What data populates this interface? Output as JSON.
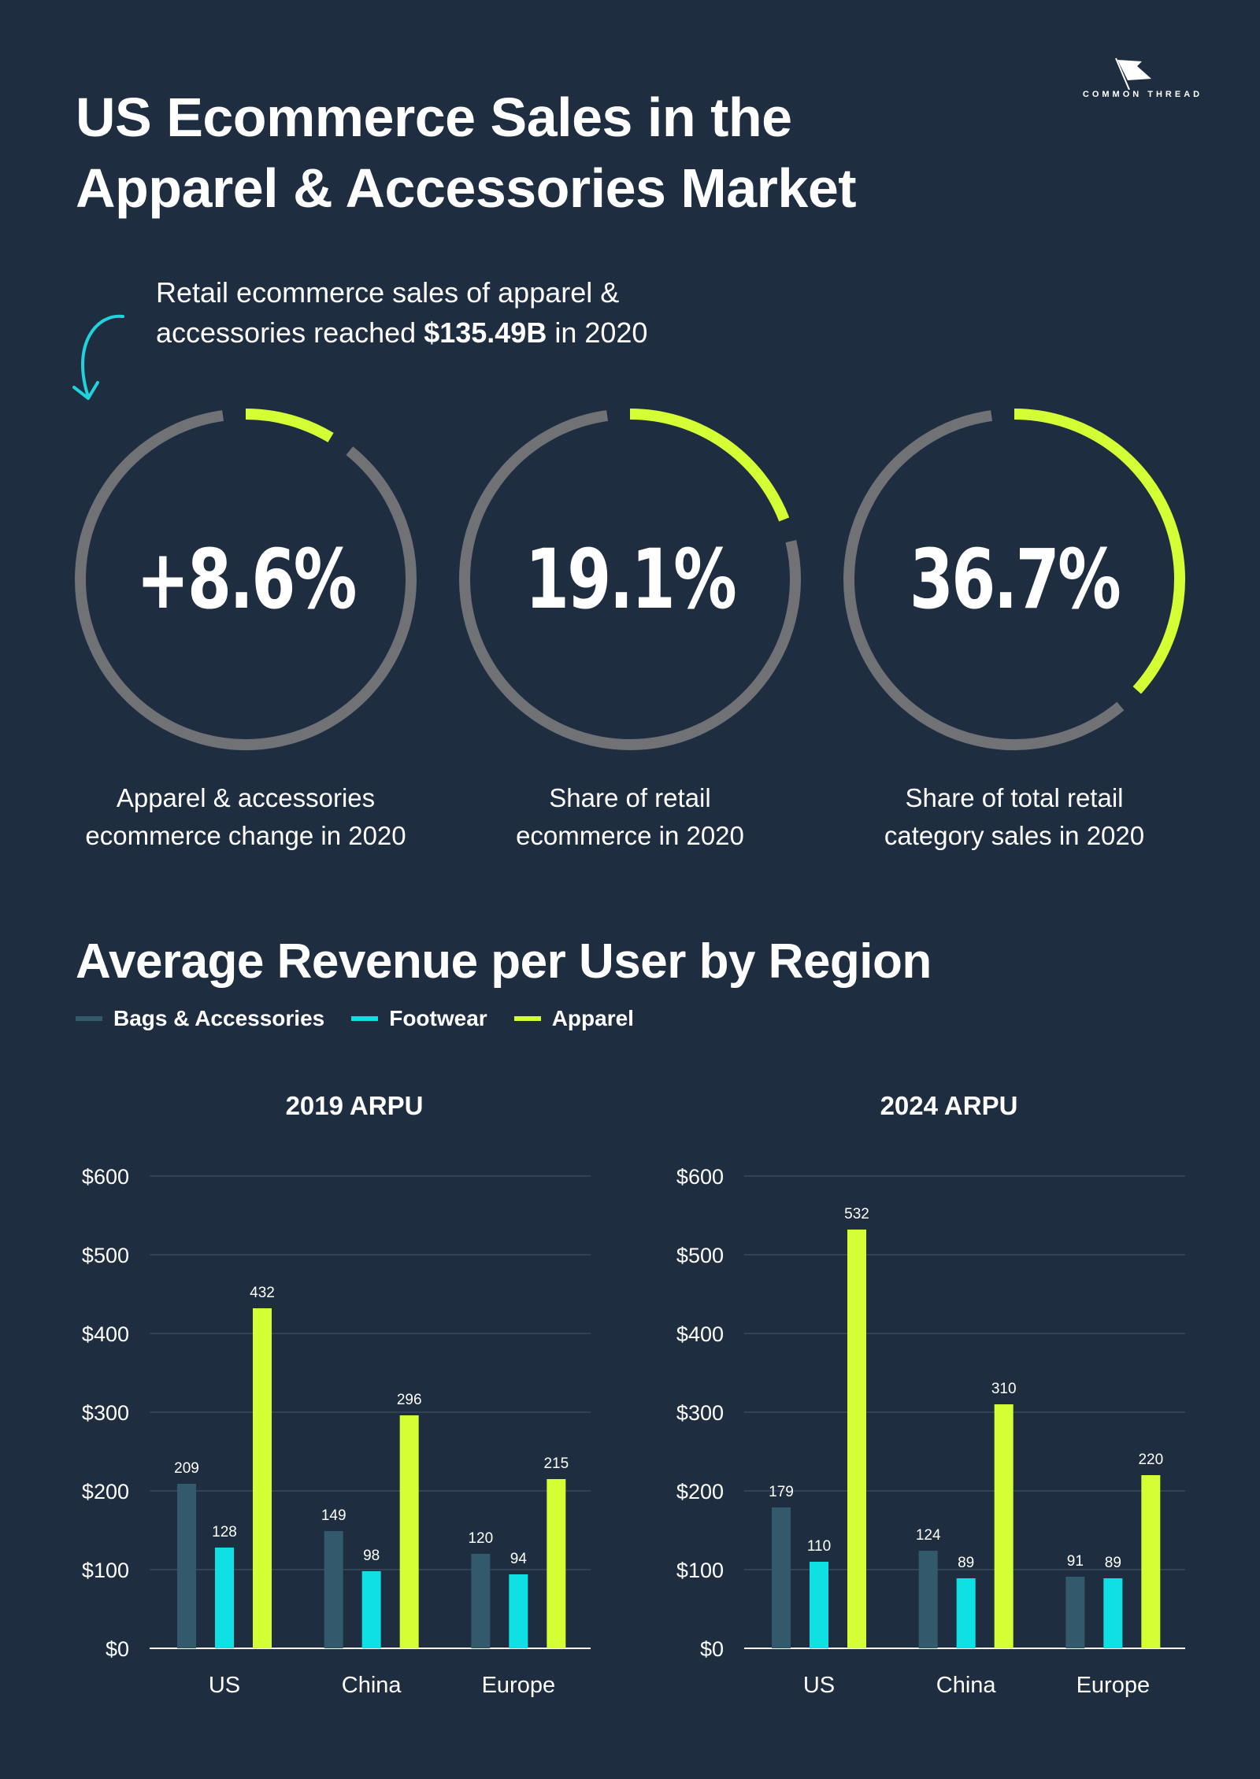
{
  "header": {
    "title_line1": "US Ecommerce Sales in the",
    "title_line2": "Apparel & Accessories Market",
    "logo_text": "COMMON THREAD"
  },
  "intro": {
    "line1": "Retail ecommerce sales of apparel &",
    "line2_prefix": "accessories reached",
    "line2_value": "$135.49B",
    "line2_suffix": "in 2020"
  },
  "stats": [
    {
      "value": "+8.6%",
      "fraction": 0.086,
      "label_line1": "Apparel & accessories",
      "label_line2": "ecommerce change in 2020"
    },
    {
      "value": "19.1%",
      "fraction": 0.191,
      "label_line1": "Share of retail",
      "label_line2": "ecommerce in 2020"
    },
    {
      "value": "36.7%",
      "fraction": 0.367,
      "label_line1": "Share of total retail",
      "label_line2": "category sales in 2020"
    }
  ],
  "section": {
    "title": "Average Revenue per User by Region"
  },
  "colors": {
    "background": "#1e2d40",
    "ring_track": "#707275",
    "ring_fill": "#d4ff35",
    "bags": "#335a6c",
    "footwear": "#0ee0e4",
    "apparel": "#d4ff35",
    "arrow": "#1fd3dc"
  },
  "legend": [
    {
      "name": "Bags & Accessories",
      "color": "#335a6c"
    },
    {
      "name": "Footwear",
      "color": "#0ee0e4"
    },
    {
      "name": "Apparel",
      "color": "#d4ff35"
    }
  ],
  "chart_data": [
    {
      "type": "bar",
      "title": "2019 ARPU",
      "categories": [
        "US",
        "China",
        "Europe"
      ],
      "series": [
        {
          "name": "Bags & Accessories",
          "values": [
            209,
            149,
            120
          ]
        },
        {
          "name": "Footwear",
          "values": [
            128,
            98,
            94
          ]
        },
        {
          "name": "Apparel",
          "values": [
            432,
            296,
            215
          ]
        }
      ],
      "ylim": [
        0,
        600
      ],
      "yticks": [
        "$0",
        "$100",
        "$200",
        "$300",
        "$400",
        "$500",
        "$600"
      ],
      "xlabel": "",
      "ylabel": ""
    },
    {
      "type": "bar",
      "title": "2024 ARPU",
      "categories": [
        "US",
        "China",
        "Europe"
      ],
      "series": [
        {
          "name": "Bags & Accessories",
          "values": [
            179,
            124,
            91
          ]
        },
        {
          "name": "Footwear",
          "values": [
            110,
            89,
            89
          ]
        },
        {
          "name": "Apparel",
          "values": [
            532,
            310,
            220
          ]
        }
      ],
      "ylim": [
        0,
        600
      ],
      "yticks": [
        "$0",
        "$100",
        "$200",
        "$300",
        "$400",
        "$500",
        "$600"
      ],
      "xlabel": "",
      "ylabel": ""
    }
  ]
}
